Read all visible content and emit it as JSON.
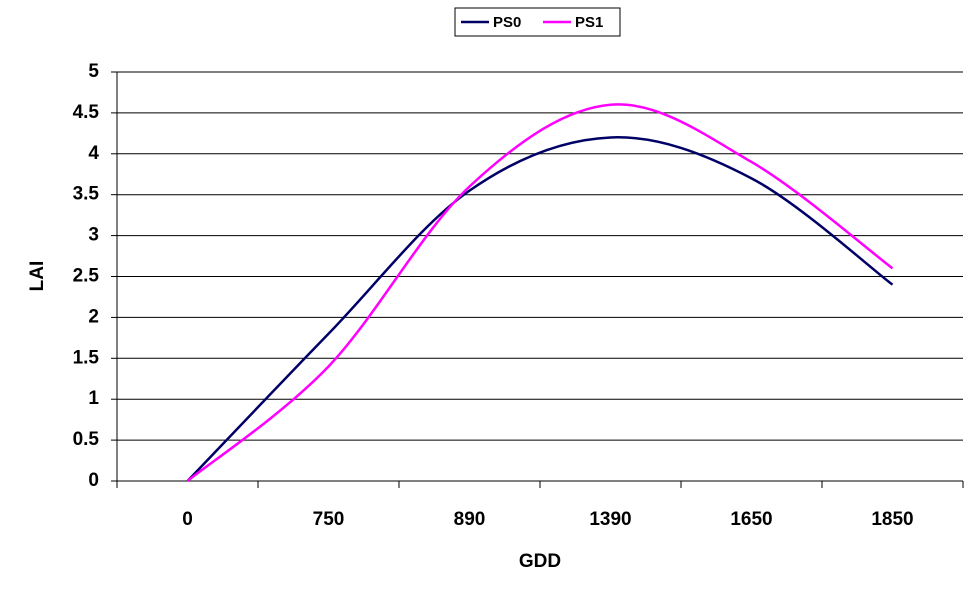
{
  "chart_data": {
    "type": "line",
    "xlabel": "GDD",
    "ylabel": "LAI",
    "categories": [
      "0",
      "750",
      "890",
      "1390",
      "1650",
      "1850"
    ],
    "series": [
      {
        "name": "PS0",
        "color": "#000066",
        "values": [
          0,
          1.8,
          3.55,
          4.2,
          3.7,
          2.4
        ]
      },
      {
        "name": "PS1",
        "color": "#ff00ff",
        "values": [
          0,
          1.4,
          3.6,
          4.6,
          3.9,
          2.6
        ]
      }
    ],
    "ylim": [
      0,
      5
    ],
    "yticks": [
      0,
      0.5,
      1,
      1.5,
      2,
      2.5,
      3,
      3.5,
      4,
      4.5,
      5
    ],
    "grid": true,
    "smooth": true,
    "legend": "top"
  }
}
